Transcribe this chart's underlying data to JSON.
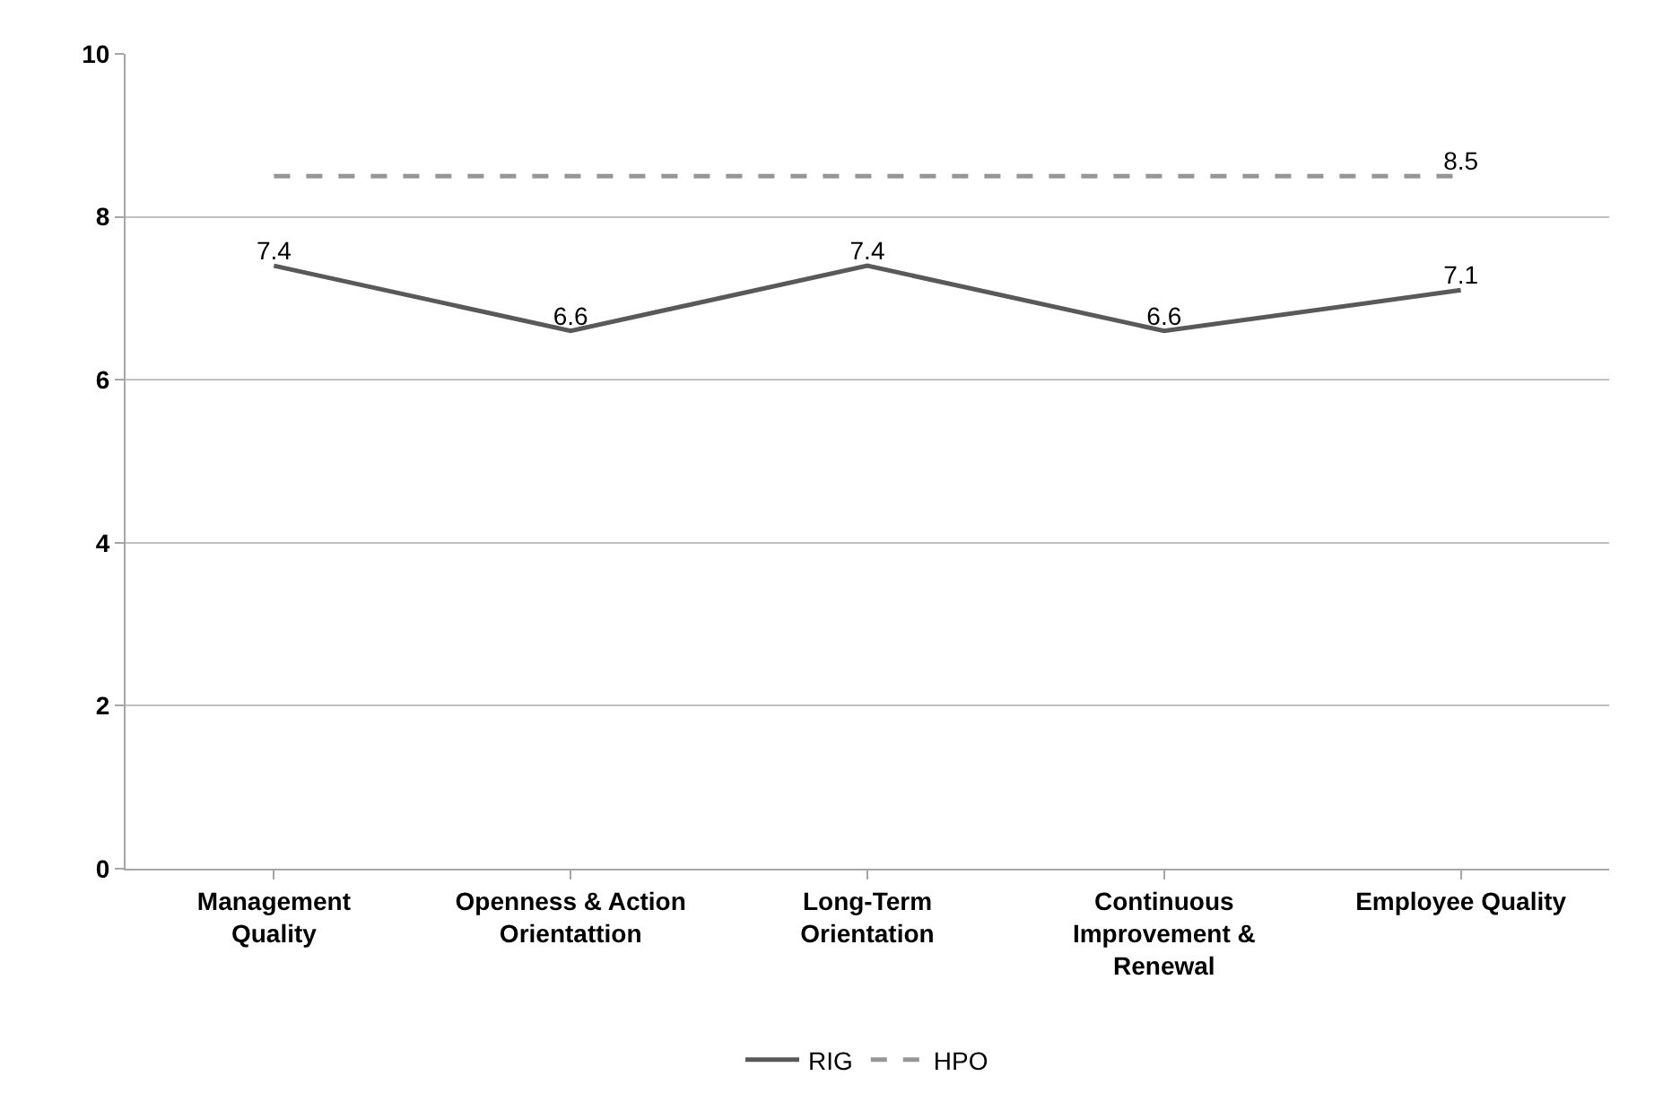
{
  "chart_data": {
    "type": "line",
    "categories": [
      "Management Quality",
      "Openness & Action Orientattion",
      "Long-Term Orientation",
      "Continuous Improvement & Renewal",
      "Employee Quality"
    ],
    "series": [
      {
        "name": "RIG",
        "color": "#595959",
        "line_style": "solid",
        "values": [
          7.4,
          6.6,
          7.4,
          6.6,
          7.1
        ],
        "value_labels": [
          "7.4",
          "6.6",
          "7.4",
          "6.6",
          "7.1"
        ]
      },
      {
        "name": "HPO",
        "color": "#969696",
        "line_style": "dashed",
        "values": [
          8.5,
          8.5,
          8.5,
          8.5,
          8.5
        ],
        "value_labels": [
          null,
          null,
          null,
          null,
          "8.5"
        ]
      }
    ],
    "ylim": [
      0,
      10
    ],
    "yticks": [
      0,
      2,
      4,
      6,
      8,
      10
    ],
    "grid": "y",
    "legend": "bottom",
    "marker": "none"
  }
}
